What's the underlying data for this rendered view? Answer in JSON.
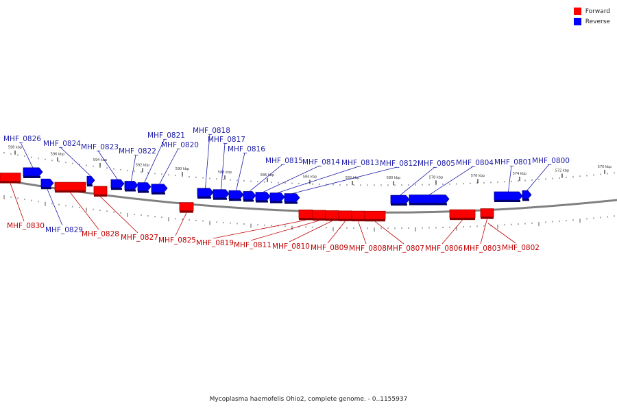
{
  "legend": [
    {
      "label": "Forward",
      "color": "#ff0000"
    },
    {
      "label": "Reverse",
      "color": "#0000ff"
    }
  ],
  "caption": "Mycoplasma haemofelis Ohio2, complete genome. - 0..1155937",
  "colors": {
    "forward": "#ff0000",
    "reverse": "#0000ff",
    "backbone": "#808080",
    "forward_label": "#c00000",
    "reverse_label": "#1a1aa6"
  },
  "ticks": [
    "598 kbp",
    "596 kbp",
    "594 kbp",
    "592 kbp",
    "590 kbp",
    "588 kbp",
    "586 kbp",
    "584 kbp",
    "582 kbp",
    "580 kbp",
    "578 kbp",
    "576 kbp",
    "574 kbp",
    "572 kbp",
    "570 kbp"
  ],
  "genes": [
    {
      "name": "MHF_0826",
      "strand": "reverse"
    },
    {
      "name": "MHF_0824",
      "strand": "reverse"
    },
    {
      "name": "MHF_0823",
      "strand": "reverse"
    },
    {
      "name": "MHF_0822",
      "strand": "reverse"
    },
    {
      "name": "MHF_0821",
      "strand": "reverse"
    },
    {
      "name": "MHF_0820",
      "strand": "reverse"
    },
    {
      "name": "MHF_0818",
      "strand": "reverse"
    },
    {
      "name": "MHF_0817",
      "strand": "reverse"
    },
    {
      "name": "MHF_0816",
      "strand": "reverse"
    },
    {
      "name": "MHF_0815",
      "strand": "reverse"
    },
    {
      "name": "MHF_0814",
      "strand": "reverse"
    },
    {
      "name": "MHF_0813",
      "strand": "reverse"
    },
    {
      "name": "MHF_0812",
      "strand": "reverse"
    },
    {
      "name": "MHF_0805",
      "strand": "reverse"
    },
    {
      "name": "MHF_0804",
      "strand": "reverse"
    },
    {
      "name": "MHF_0801",
      "strand": "reverse"
    },
    {
      "name": "MHF_0800",
      "strand": "reverse"
    },
    {
      "name": "MHF_0830",
      "strand": "forward"
    },
    {
      "name": "MHF_0829",
      "strand": "reverse"
    },
    {
      "name": "MHF_0828",
      "strand": "forward"
    },
    {
      "name": "MHF_0827",
      "strand": "forward"
    },
    {
      "name": "MHF_0825",
      "strand": "forward"
    },
    {
      "name": "MHF_0819",
      "strand": "forward"
    },
    {
      "name": "MHF_0811",
      "strand": "forward"
    },
    {
      "name": "MHF_0810",
      "strand": "forward"
    },
    {
      "name": "MHF_0809",
      "strand": "forward"
    },
    {
      "name": "MHF_0808",
      "strand": "forward"
    },
    {
      "name": "MHF_0807",
      "strand": "forward"
    },
    {
      "name": "MHF_0806",
      "strand": "forward"
    },
    {
      "name": "MHF_0803",
      "strand": "forward"
    },
    {
      "name": "MHF_0802",
      "strand": "forward"
    }
  ]
}
